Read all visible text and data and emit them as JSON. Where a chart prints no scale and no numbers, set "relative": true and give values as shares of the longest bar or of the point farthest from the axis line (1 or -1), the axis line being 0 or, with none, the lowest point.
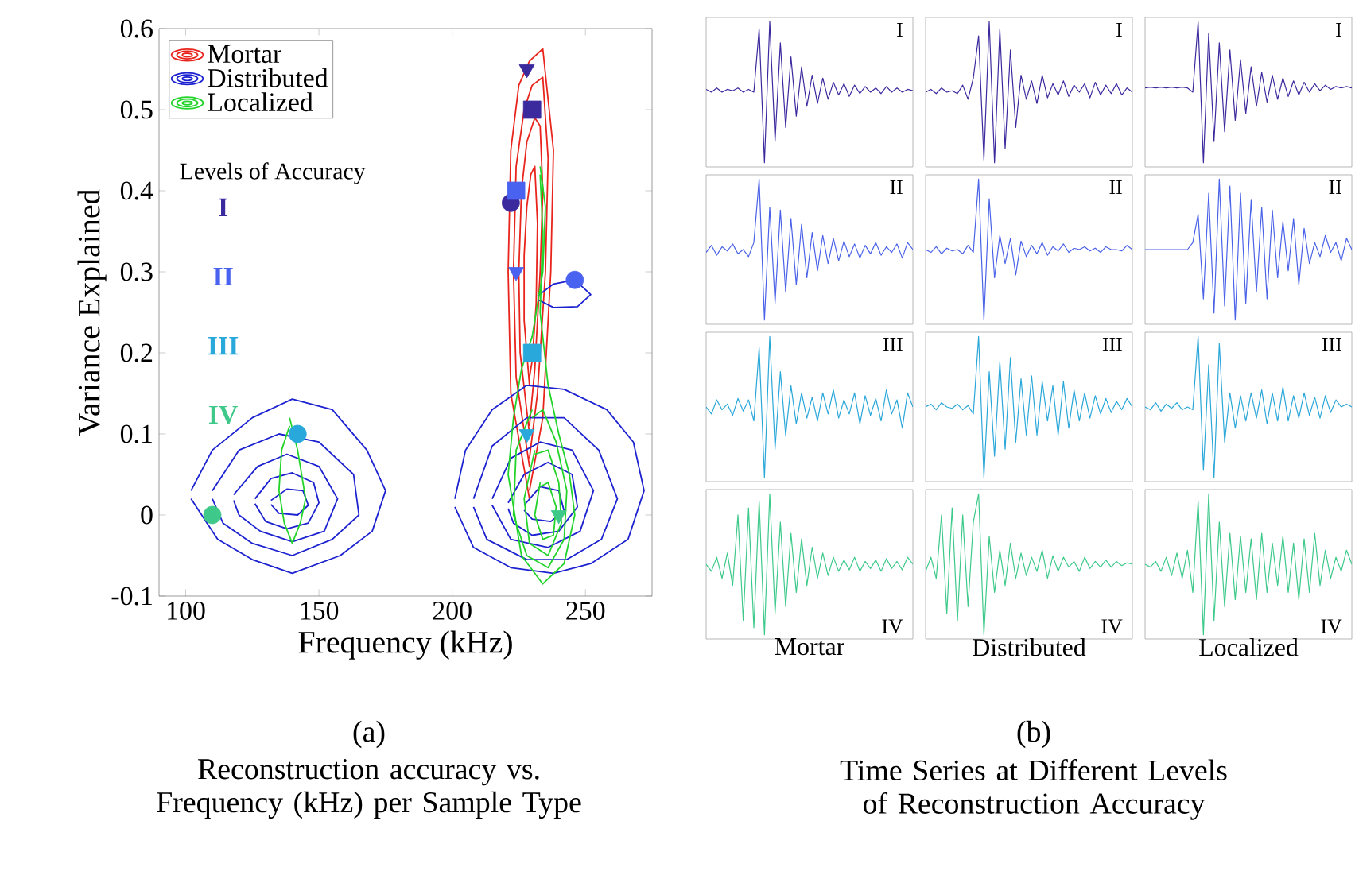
{
  "chart_data": [
    {
      "type": "line",
      "xlabel": "Frequency (kHz)",
      "ylabel": "Variance Explained",
      "xlim": [
        90,
        275
      ],
      "ylim": [
        -0.1,
        0.6
      ],
      "xticks": [
        100,
        150,
        200,
        250
      ],
      "yticks": [
        -0.1,
        0,
        0.1,
        0.2,
        0.3,
        0.4,
        0.5,
        0.6
      ],
      "grid": false,
      "legend": "top left",
      "line_style": "solid",
      "annotations": [
        "Levels of Accuracy",
        "(a)",
        "Reconstruction accuracy vs. Frequency (kHz) per Sample Type"
      ],
      "series": [
        {
          "type": "line",
          "name": "Mortar",
          "color": "#e8241c",
          "x": [
            229,
            222,
            221,
            222,
            225,
            229,
            234,
            238,
            237,
            234,
            229
          ],
          "values": [
            0.02,
            0.15,
            0.3,
            0.45,
            0.53,
            0.56,
            0.575,
            0.45,
            0.3,
            0.12,
            0.03
          ]
        },
        {
          "type": "line",
          "color": "#e8241c",
          "x": [
            229,
            224,
            223,
            224,
            227,
            230,
            234,
            236,
            235,
            232,
            229
          ],
          "values": [
            0.06,
            0.17,
            0.3,
            0.43,
            0.5,
            0.53,
            0.54,
            0.44,
            0.3,
            0.15,
            0.07
          ]
        },
        {
          "type": "line",
          "color": "#e8241c",
          "x": [
            229,
            225.5,
            225,
            226,
            228,
            231,
            233,
            234,
            233,
            231,
            229
          ],
          "values": [
            0.1,
            0.2,
            0.3,
            0.4,
            0.46,
            0.49,
            0.48,
            0.4,
            0.3,
            0.18,
            0.11
          ]
        },
        {
          "type": "line",
          "color": "#e8241c",
          "x": [
            229,
            227,
            227,
            228,
            229.5,
            231,
            232,
            231.5,
            230,
            229
          ],
          "values": [
            0.16,
            0.24,
            0.32,
            0.38,
            0.42,
            0.43,
            0.36,
            0.26,
            0.19,
            0.17
          ]
        },
        {
          "type": "line",
          "name": "Distributed",
          "color": "#1c22d0",
          "x": [
            102,
            110,
            125,
            140,
            155,
            168,
            175,
            170,
            158,
            140,
            125,
            112,
            102
          ],
          "values": [
            0.03,
            0.08,
            0.12,
            0.143,
            0.13,
            0.08,
            0.03,
            -0.02,
            -0.05,
            -0.072,
            -0.055,
            -0.03,
            0.02
          ]
        },
        {
          "type": "line",
          "color": "#1c22d0",
          "x": [
            110,
            120,
            135,
            150,
            163,
            165,
            155,
            140,
            125,
            114,
            110
          ],
          "values": [
            0.03,
            0.08,
            0.1,
            0.09,
            0.05,
            0.0,
            -0.03,
            -0.05,
            -0.035,
            -0.01,
            0.02
          ]
        },
        {
          "type": "line",
          "color": "#1c22d0",
          "x": [
            118,
            127,
            138,
            150,
            157,
            152,
            140,
            128,
            120,
            118
          ],
          "values": [
            0.025,
            0.06,
            0.075,
            0.06,
            0.02,
            -0.02,
            -0.033,
            -0.02,
            0.0,
            0.018
          ]
        },
        {
          "type": "line",
          "color": "#1c22d0",
          "x": [
            126,
            132,
            140,
            148,
            150,
            146,
            138,
            130,
            126
          ],
          "values": [
            0.02,
            0.045,
            0.052,
            0.04,
            0.015,
            -0.01,
            -0.017,
            -0.008,
            0.014
          ]
        },
        {
          "type": "line",
          "color": "#1c22d0",
          "x": [
            132,
            138,
            144,
            146,
            142,
            135,
            132
          ],
          "values": [
            0.018,
            0.032,
            0.03,
            0.012,
            0.0,
            0.002,
            0.013
          ]
        },
        {
          "type": "line",
          "color": "#1c22d0",
          "x": [
            201,
            205,
            215,
            228,
            242,
            258,
            268,
            272,
            266,
            252,
            238,
            222,
            208,
            201
          ],
          "values": [
            0.02,
            0.08,
            0.13,
            0.16,
            0.155,
            0.13,
            0.09,
            0.03,
            -0.03,
            -0.06,
            -0.072,
            -0.065,
            -0.04,
            0.01
          ]
        },
        {
          "type": "line",
          "color": "#1c22d0",
          "x": [
            208,
            215,
            228,
            242,
            255,
            262,
            256,
            243,
            228,
            213,
            208
          ],
          "values": [
            0.02,
            0.085,
            0.12,
            0.12,
            0.08,
            0.02,
            -0.03,
            -0.055,
            -0.055,
            -0.03,
            0.01
          ]
        },
        {
          "type": "line",
          "color": "#1c22d0",
          "x": [
            215,
            222,
            233,
            245,
            253,
            248,
            236,
            222,
            215
          ],
          "values": [
            0.02,
            0.07,
            0.09,
            0.08,
            0.03,
            -0.02,
            -0.04,
            -0.03,
            0.012
          ]
        },
        {
          "type": "line",
          "color": "#1c22d0",
          "x": [
            221,
            227,
            236,
            245,
            247,
            240,
            230,
            223,
            221
          ],
          "values": [
            0.015,
            0.05,
            0.065,
            0.05,
            0.01,
            -0.02,
            -0.025,
            -0.01,
            0.008
          ]
        },
        {
          "type": "line",
          "color": "#1c22d0",
          "x": [
            227,
            233,
            240,
            242,
            237,
            230,
            227
          ],
          "values": [
            0.012,
            0.035,
            0.03,
            0.005,
            -0.008,
            -0.005,
            0.006
          ]
        },
        {
          "type": "line",
          "color": "#1c22d0",
          "x": [
            232,
            238,
            246,
            252,
            247,
            238,
            232
          ],
          "values": [
            0.27,
            0.285,
            0.29,
            0.272,
            0.257,
            0.256,
            0.266
          ]
        },
        {
          "type": "line",
          "name": "Localized",
          "color": "#22d42a",
          "x": [
            139,
            142,
            145,
            143,
            140,
            137,
            135,
            136,
            139
          ],
          "values": [
            0.12,
            0.08,
            0.02,
            -0.01,
            -0.035,
            -0.01,
            0.03,
            0.08,
            0.11
          ]
        },
        {
          "type": "line",
          "color": "#22d42a",
          "x": [
            233,
            235,
            234,
            230,
            226,
            223,
            221,
            226,
            234,
            242,
            246,
            244,
            240,
            236,
            233,
            234,
            233
          ],
          "values": [
            0.43,
            0.38,
            0.3,
            0.22,
            0.18,
            0.12,
            0.05,
            -0.05,
            -0.085,
            -0.06,
            0.0,
            0.05,
            0.1,
            0.16,
            0.25,
            0.35,
            0.42
          ]
        },
        {
          "type": "line",
          "color": "#22d42a",
          "x": [
            230,
            224,
            223,
            228,
            236,
            242,
            243,
            239,
            234,
            230
          ],
          "values": [
            0.13,
            0.08,
            0.0,
            -0.05,
            -0.065,
            -0.03,
            0.03,
            0.09,
            0.13,
            0.12
          ]
        },
        {
          "type": "line",
          "color": "#22d42a",
          "x": [
            231,
            227,
            229,
            236,
            241,
            240,
            236,
            231
          ],
          "values": [
            0.08,
            0.02,
            -0.035,
            -0.05,
            -0.01,
            0.04,
            0.08,
            0.075
          ]
        },
        {
          "type": "line",
          "color": "#22d42a",
          "x": [
            233,
            231,
            234,
            238,
            239,
            236,
            233
          ],
          "values": [
            0.04,
            0.0,
            -0.03,
            -0.025,
            0.01,
            0.04,
            0.035
          ]
        },
        {
          "type": "scatter",
          "name": "I",
          "marker": "triangle",
          "color": "#3b2a9e",
          "x": [
            228
          ],
          "values": [
            0.55
          ]
        },
        {
          "type": "scatter",
          "marker": "square",
          "color": "#3b2a9e",
          "x": [
            230
          ],
          "values": [
            0.5
          ]
        },
        {
          "type": "scatter",
          "marker": "circle",
          "color": "#3b2a9e",
          "x": [
            222
          ],
          "values": [
            0.385
          ]
        },
        {
          "type": "scatter",
          "name": "II",
          "marker": "square",
          "color": "#4a62f0",
          "x": [
            224
          ],
          "values": [
            0.4
          ]
        },
        {
          "type": "scatter",
          "marker": "triangle",
          "color": "#4a62f0",
          "x": [
            224
          ],
          "values": [
            0.3
          ]
        },
        {
          "type": "scatter",
          "marker": "circle",
          "color": "#4a62f0",
          "x": [
            246
          ],
          "values": [
            0.29
          ]
        },
        {
          "type": "scatter",
          "name": "III",
          "marker": "circle",
          "color": "#29a8dc",
          "x": [
            142
          ],
          "values": [
            0.1
          ]
        },
        {
          "type": "scatter",
          "marker": "square",
          "color": "#29a8dc",
          "x": [
            230
          ],
          "values": [
            0.2
          ]
        },
        {
          "type": "scatter",
          "marker": "triangle",
          "color": "#29a8dc",
          "x": [
            228
          ],
          "values": [
            0.1
          ]
        },
        {
          "type": "scatter",
          "name": "IV",
          "marker": "circle",
          "color": "#3ec98a",
          "x": [
            110
          ],
          "values": [
            0
          ]
        },
        {
          "type": "scatter",
          "marker": "triangle",
          "color": "#3ec98a",
          "x": [
            240
          ],
          "values": [
            0
          ]
        }
      ]
    },
    {
      "type": "line",
      "relative": true,
      "annotations": [
        "I"
      ],
      "categories": [
        null,
        null,
        null,
        null,
        null,
        null,
        null,
        null,
        null,
        null,
        null,
        null,
        null,
        null,
        null,
        null,
        null,
        null,
        null,
        null,
        null,
        null,
        null,
        null,
        null,
        null,
        null,
        null,
        null,
        null,
        null,
        null,
        null,
        null,
        null,
        null,
        null,
        null,
        null,
        null
      ],
      "series": [
        {
          "color": "#3b2a9e",
          "values": [
            0.52,
            0.5,
            0.53,
            0.5,
            0.52,
            0.51,
            0.53,
            0.5,
            0.52,
            0.5,
            0.95,
            0.0,
            1.0,
            0.15,
            0.85,
            0.25,
            0.75,
            0.33,
            0.68,
            0.4,
            0.62,
            0.42,
            0.6,
            0.45,
            0.57,
            0.48,
            0.56,
            0.47,
            0.55,
            0.49,
            0.54,
            0.5,
            0.53,
            0.49,
            0.54,
            0.5,
            0.53,
            0.5,
            0.52,
            0.51
          ]
        }
      ]
    },
    {
      "type": "line",
      "relative": true,
      "annotations": [
        "I"
      ],
      "categories": [
        null,
        null,
        null,
        null,
        null,
        null,
        null,
        null,
        null,
        null,
        null,
        null,
        null,
        null,
        null,
        null,
        null,
        null,
        null,
        null,
        null,
        null,
        null,
        null,
        null,
        null,
        null,
        null,
        null,
        null,
        null,
        null,
        null,
        null,
        null,
        null,
        null,
        null,
        null,
        null
      ],
      "series": [
        {
          "color": "#3b2a9e",
          "values": [
            0.5,
            0.52,
            0.49,
            0.53,
            0.5,
            0.51,
            0.49,
            0.55,
            0.45,
            0.6,
            0.9,
            0.02,
            1.0,
            0.0,
            0.95,
            0.1,
            0.8,
            0.25,
            0.62,
            0.45,
            0.58,
            0.42,
            0.62,
            0.46,
            0.56,
            0.48,
            0.58,
            0.47,
            0.55,
            0.5,
            0.56,
            0.46,
            0.57,
            0.48,
            0.55,
            0.49,
            0.56,
            0.48,
            0.53,
            0.5
          ]
        }
      ]
    },
    {
      "type": "line",
      "relative": true,
      "annotations": [
        "I"
      ],
      "categories": [
        null,
        null,
        null,
        null,
        null,
        null,
        null,
        null,
        null,
        null,
        null,
        null,
        null,
        null,
        null,
        null,
        null,
        null,
        null,
        null,
        null,
        null,
        null,
        null,
        null,
        null,
        null,
        null,
        null,
        null,
        null,
        null,
        null,
        null,
        null,
        null,
        null,
        null,
        null,
        null
      ],
      "series": [
        {
          "color": "#3b2a9e",
          "values": [
            0.53,
            0.535,
            0.53,
            0.535,
            0.53,
            0.535,
            0.53,
            0.535,
            0.53,
            0.5,
            1.0,
            0.0,
            0.92,
            0.15,
            0.85,
            0.22,
            0.8,
            0.3,
            0.73,
            0.35,
            0.68,
            0.4,
            0.64,
            0.43,
            0.62,
            0.45,
            0.6,
            0.47,
            0.58,
            0.48,
            0.57,
            0.5,
            0.56,
            0.51,
            0.55,
            0.52,
            0.54,
            0.53,
            0.54,
            0.53
          ]
        }
      ]
    },
    {
      "type": "line",
      "relative": true,
      "annotations": [
        "II"
      ],
      "categories": [
        null,
        null,
        null,
        null,
        null,
        null,
        null,
        null,
        null,
        null,
        null,
        null,
        null,
        null,
        null,
        null,
        null,
        null,
        null,
        null,
        null,
        null,
        null,
        null,
        null,
        null,
        null,
        null,
        null,
        null,
        null,
        null,
        null,
        null,
        null,
        null,
        null,
        null,
        null,
        null
      ],
      "series": [
        {
          "color": "#4a62e8",
          "values": [
            0.48,
            0.53,
            0.46,
            0.52,
            0.49,
            0.54,
            0.47,
            0.5,
            0.45,
            0.55,
            1.0,
            0.0,
            0.8,
            0.12,
            0.78,
            0.2,
            0.72,
            0.25,
            0.68,
            0.3,
            0.62,
            0.35,
            0.6,
            0.4,
            0.58,
            0.42,
            0.56,
            0.45,
            0.54,
            0.44,
            0.53,
            0.47,
            0.55,
            0.46,
            0.52,
            0.48,
            0.54,
            0.44,
            0.55,
            0.5
          ]
        }
      ]
    },
    {
      "type": "line",
      "relative": true,
      "annotations": [
        "II"
      ],
      "categories": [
        null,
        null,
        null,
        null,
        null,
        null,
        null,
        null,
        null,
        null,
        null,
        null,
        null,
        null,
        null,
        null,
        null,
        null,
        null,
        null,
        null,
        null,
        null,
        null,
        null,
        null,
        null,
        null,
        null,
        null,
        null,
        null,
        null,
        null,
        null,
        null,
        null,
        null,
        null,
        null
      ],
      "series": [
        {
          "color": "#4a62e8",
          "values": [
            0.5,
            0.48,
            0.52,
            0.47,
            0.51,
            0.49,
            0.5,
            0.47,
            0.53,
            0.48,
            1.0,
            0.0,
            0.86,
            0.3,
            0.6,
            0.4,
            0.58,
            0.32,
            0.56,
            0.45,
            0.53,
            0.47,
            0.55,
            0.46,
            0.52,
            0.49,
            0.54,
            0.48,
            0.51,
            0.5,
            0.52,
            0.49,
            0.51,
            0.48,
            0.52,
            0.5,
            0.5,
            0.49,
            0.53,
            0.5
          ]
        }
      ]
    },
    {
      "type": "line",
      "relative": true,
      "annotations": [
        "II"
      ],
      "categories": [
        null,
        null,
        null,
        null,
        null,
        null,
        null,
        null,
        null,
        null,
        null,
        null,
        null,
        null,
        null,
        null,
        null,
        null,
        null,
        null,
        null,
        null,
        null,
        null,
        null,
        null,
        null,
        null,
        null,
        null,
        null,
        null,
        null,
        null,
        null,
        null,
        null,
        null,
        null,
        null
      ],
      "series": [
        {
          "color": "#4a62e8",
          "values": [
            0.5,
            0.5,
            0.5,
            0.5,
            0.5,
            0.5,
            0.5,
            0.5,
            0.5,
            0.55,
            0.75,
            0.15,
            0.9,
            0.05,
            1.0,
            0.1,
            0.95,
            0.0,
            0.9,
            0.12,
            0.85,
            0.2,
            0.8,
            0.15,
            0.78,
            0.3,
            0.7,
            0.35,
            0.72,
            0.25,
            0.65,
            0.4,
            0.55,
            0.45,
            0.6,
            0.48,
            0.55,
            0.42,
            0.58,
            0.5
          ]
        }
      ]
    },
    {
      "type": "line",
      "relative": true,
      "annotations": [
        "III"
      ],
      "categories": [
        null,
        null,
        null,
        null,
        null,
        null,
        null,
        null,
        null,
        null,
        null,
        null,
        null,
        null,
        null,
        null,
        null,
        null,
        null,
        null,
        null,
        null,
        null,
        null,
        null,
        null,
        null,
        null,
        null,
        null,
        null,
        null,
        null,
        null,
        null,
        null,
        null,
        null,
        null,
        null
      ],
      "series": [
        {
          "color": "#2aa7d9",
          "values": [
            0.5,
            0.45,
            0.55,
            0.48,
            0.52,
            0.44,
            0.56,
            0.47,
            0.55,
            0.4,
            0.92,
            0.0,
            1.0,
            0.2,
            0.75,
            0.3,
            0.65,
            0.38,
            0.6,
            0.42,
            0.57,
            0.4,
            0.6,
            0.45,
            0.62,
            0.42,
            0.55,
            0.45,
            0.6,
            0.38,
            0.58,
            0.44,
            0.56,
            0.4,
            0.62,
            0.45,
            0.55,
            0.35,
            0.6,
            0.5
          ]
        }
      ]
    },
    {
      "type": "line",
      "relative": true,
      "annotations": [
        "III"
      ],
      "categories": [
        null,
        null,
        null,
        null,
        null,
        null,
        null,
        null,
        null,
        null,
        null,
        null,
        null,
        null,
        null,
        null,
        null,
        null,
        null,
        null,
        null,
        null,
        null,
        null,
        null,
        null,
        null,
        null,
        null,
        null,
        null,
        null,
        null,
        null,
        null,
        null,
        null,
        null,
        null,
        null
      ],
      "series": [
        {
          "color": "#2aa7d9",
          "values": [
            0.5,
            0.52,
            0.48,
            0.53,
            0.5,
            0.49,
            0.52,
            0.48,
            0.51,
            0.45,
            1.0,
            0.0,
            0.75,
            0.15,
            0.82,
            0.2,
            0.85,
            0.25,
            0.7,
            0.3,
            0.72,
            0.3,
            0.68,
            0.4,
            0.65,
            0.3,
            0.68,
            0.35,
            0.62,
            0.4,
            0.6,
            0.42,
            0.58,
            0.45,
            0.56,
            0.46,
            0.54,
            0.48,
            0.56,
            0.5
          ]
        }
      ]
    },
    {
      "type": "line",
      "relative": true,
      "annotations": [
        "III"
      ],
      "categories": [
        null,
        null,
        null,
        null,
        null,
        null,
        null,
        null,
        null,
        null,
        null,
        null,
        null,
        null,
        null,
        null,
        null,
        null,
        null,
        null,
        null,
        null,
        null,
        null,
        null,
        null,
        null,
        null,
        null,
        null,
        null,
        null,
        null,
        null,
        null,
        null,
        null,
        null,
        null,
        null
      ],
      "series": [
        {
          "color": "#2aa7d9",
          "values": [
            0.5,
            0.48,
            0.53,
            0.47,
            0.52,
            0.49,
            0.53,
            0.48,
            0.5,
            0.48,
            1.0,
            0.05,
            0.8,
            0.0,
            0.95,
            0.25,
            0.6,
            0.35,
            0.58,
            0.4,
            0.6,
            0.42,
            0.62,
            0.38,
            0.6,
            0.4,
            0.64,
            0.4,
            0.58,
            0.42,
            0.6,
            0.44,
            0.57,
            0.42,
            0.58,
            0.46,
            0.55,
            0.5,
            0.52,
            0.5
          ]
        }
      ]
    },
    {
      "type": "line",
      "relative": true,
      "xlabel": "Mortar",
      "annotations": [
        "IV"
      ],
      "categories": [
        null,
        null,
        null,
        null,
        null,
        null,
        null,
        null,
        null,
        null,
        null,
        null,
        null,
        null,
        null,
        null,
        null,
        null,
        null,
        null,
        null,
        null,
        null,
        null,
        null,
        null,
        null,
        null,
        null,
        null,
        null,
        null,
        null,
        null,
        null,
        null,
        null,
        null,
        null,
        null
      ],
      "series": [
        {
          "color": "#3cc98a",
          "values": [
            0.5,
            0.45,
            0.55,
            0.4,
            0.58,
            0.35,
            0.85,
            0.1,
            0.9,
            0.05,
            0.95,
            0.0,
            1.0,
            0.15,
            0.8,
            0.2,
            0.72,
            0.3,
            0.68,
            0.35,
            0.62,
            0.4,
            0.58,
            0.42,
            0.55,
            0.45,
            0.53,
            0.46,
            0.55,
            0.45,
            0.52,
            0.47,
            0.53,
            0.45,
            0.54,
            0.47,
            0.52,
            0.46,
            0.55,
            0.5
          ]
        }
      ]
    },
    {
      "type": "line",
      "relative": true,
      "xlabel": "Distributed",
      "annotations": [
        "IV",
        "(b)",
        "Time Series at Different Levels of Reconstruction Accuracy"
      ],
      "categories": [
        null,
        null,
        null,
        null,
        null,
        null,
        null,
        null,
        null,
        null,
        null,
        null,
        null,
        null,
        null,
        null,
        null,
        null,
        null,
        null,
        null,
        null,
        null,
        null,
        null,
        null,
        null,
        null,
        null,
        null,
        null,
        null,
        null,
        null,
        null,
        null,
        null,
        null,
        null,
        null
      ],
      "series": [
        {
          "color": "#3cc98a",
          "values": [
            0.45,
            0.55,
            0.4,
            0.85,
            0.15,
            0.9,
            0.1,
            0.85,
            0.2,
            0.8,
            1.0,
            0.0,
            0.7,
            0.3,
            0.6,
            0.35,
            0.65,
            0.4,
            0.58,
            0.42,
            0.55,
            0.45,
            0.6,
            0.4,
            0.56,
            0.45,
            0.55,
            0.48,
            0.52,
            0.45,
            0.55,
            0.47,
            0.52,
            0.48,
            0.53,
            0.48,
            0.52,
            0.49,
            0.51,
            0.5
          ]
        }
      ]
    },
    {
      "type": "line",
      "relative": true,
      "xlabel": "Localized",
      "annotations": [
        "IV"
      ],
      "categories": [
        null,
        null,
        null,
        null,
        null,
        null,
        null,
        null,
        null,
        null,
        null,
        null,
        null,
        null,
        null,
        null,
        null,
        null,
        null,
        null,
        null,
        null,
        null,
        null,
        null,
        null,
        null,
        null,
        null,
        null,
        null,
        null,
        null,
        null,
        null,
        null,
        null,
        null,
        null,
        null
      ],
      "series": [
        {
          "color": "#3cc98a",
          "values": [
            0.5,
            0.48,
            0.52,
            0.45,
            0.55,
            0.42,
            0.58,
            0.4,
            0.6,
            0.3,
            0.95,
            0.0,
            1.0,
            0.1,
            0.8,
            0.2,
            0.72,
            0.25,
            0.7,
            0.3,
            0.68,
            0.25,
            0.72,
            0.3,
            0.65,
            0.35,
            0.7,
            0.3,
            0.65,
            0.25,
            0.68,
            0.3,
            0.72,
            0.35,
            0.6,
            0.4,
            0.55,
            0.45,
            0.6,
            0.5
          ]
        }
      ]
    }
  ]
}
